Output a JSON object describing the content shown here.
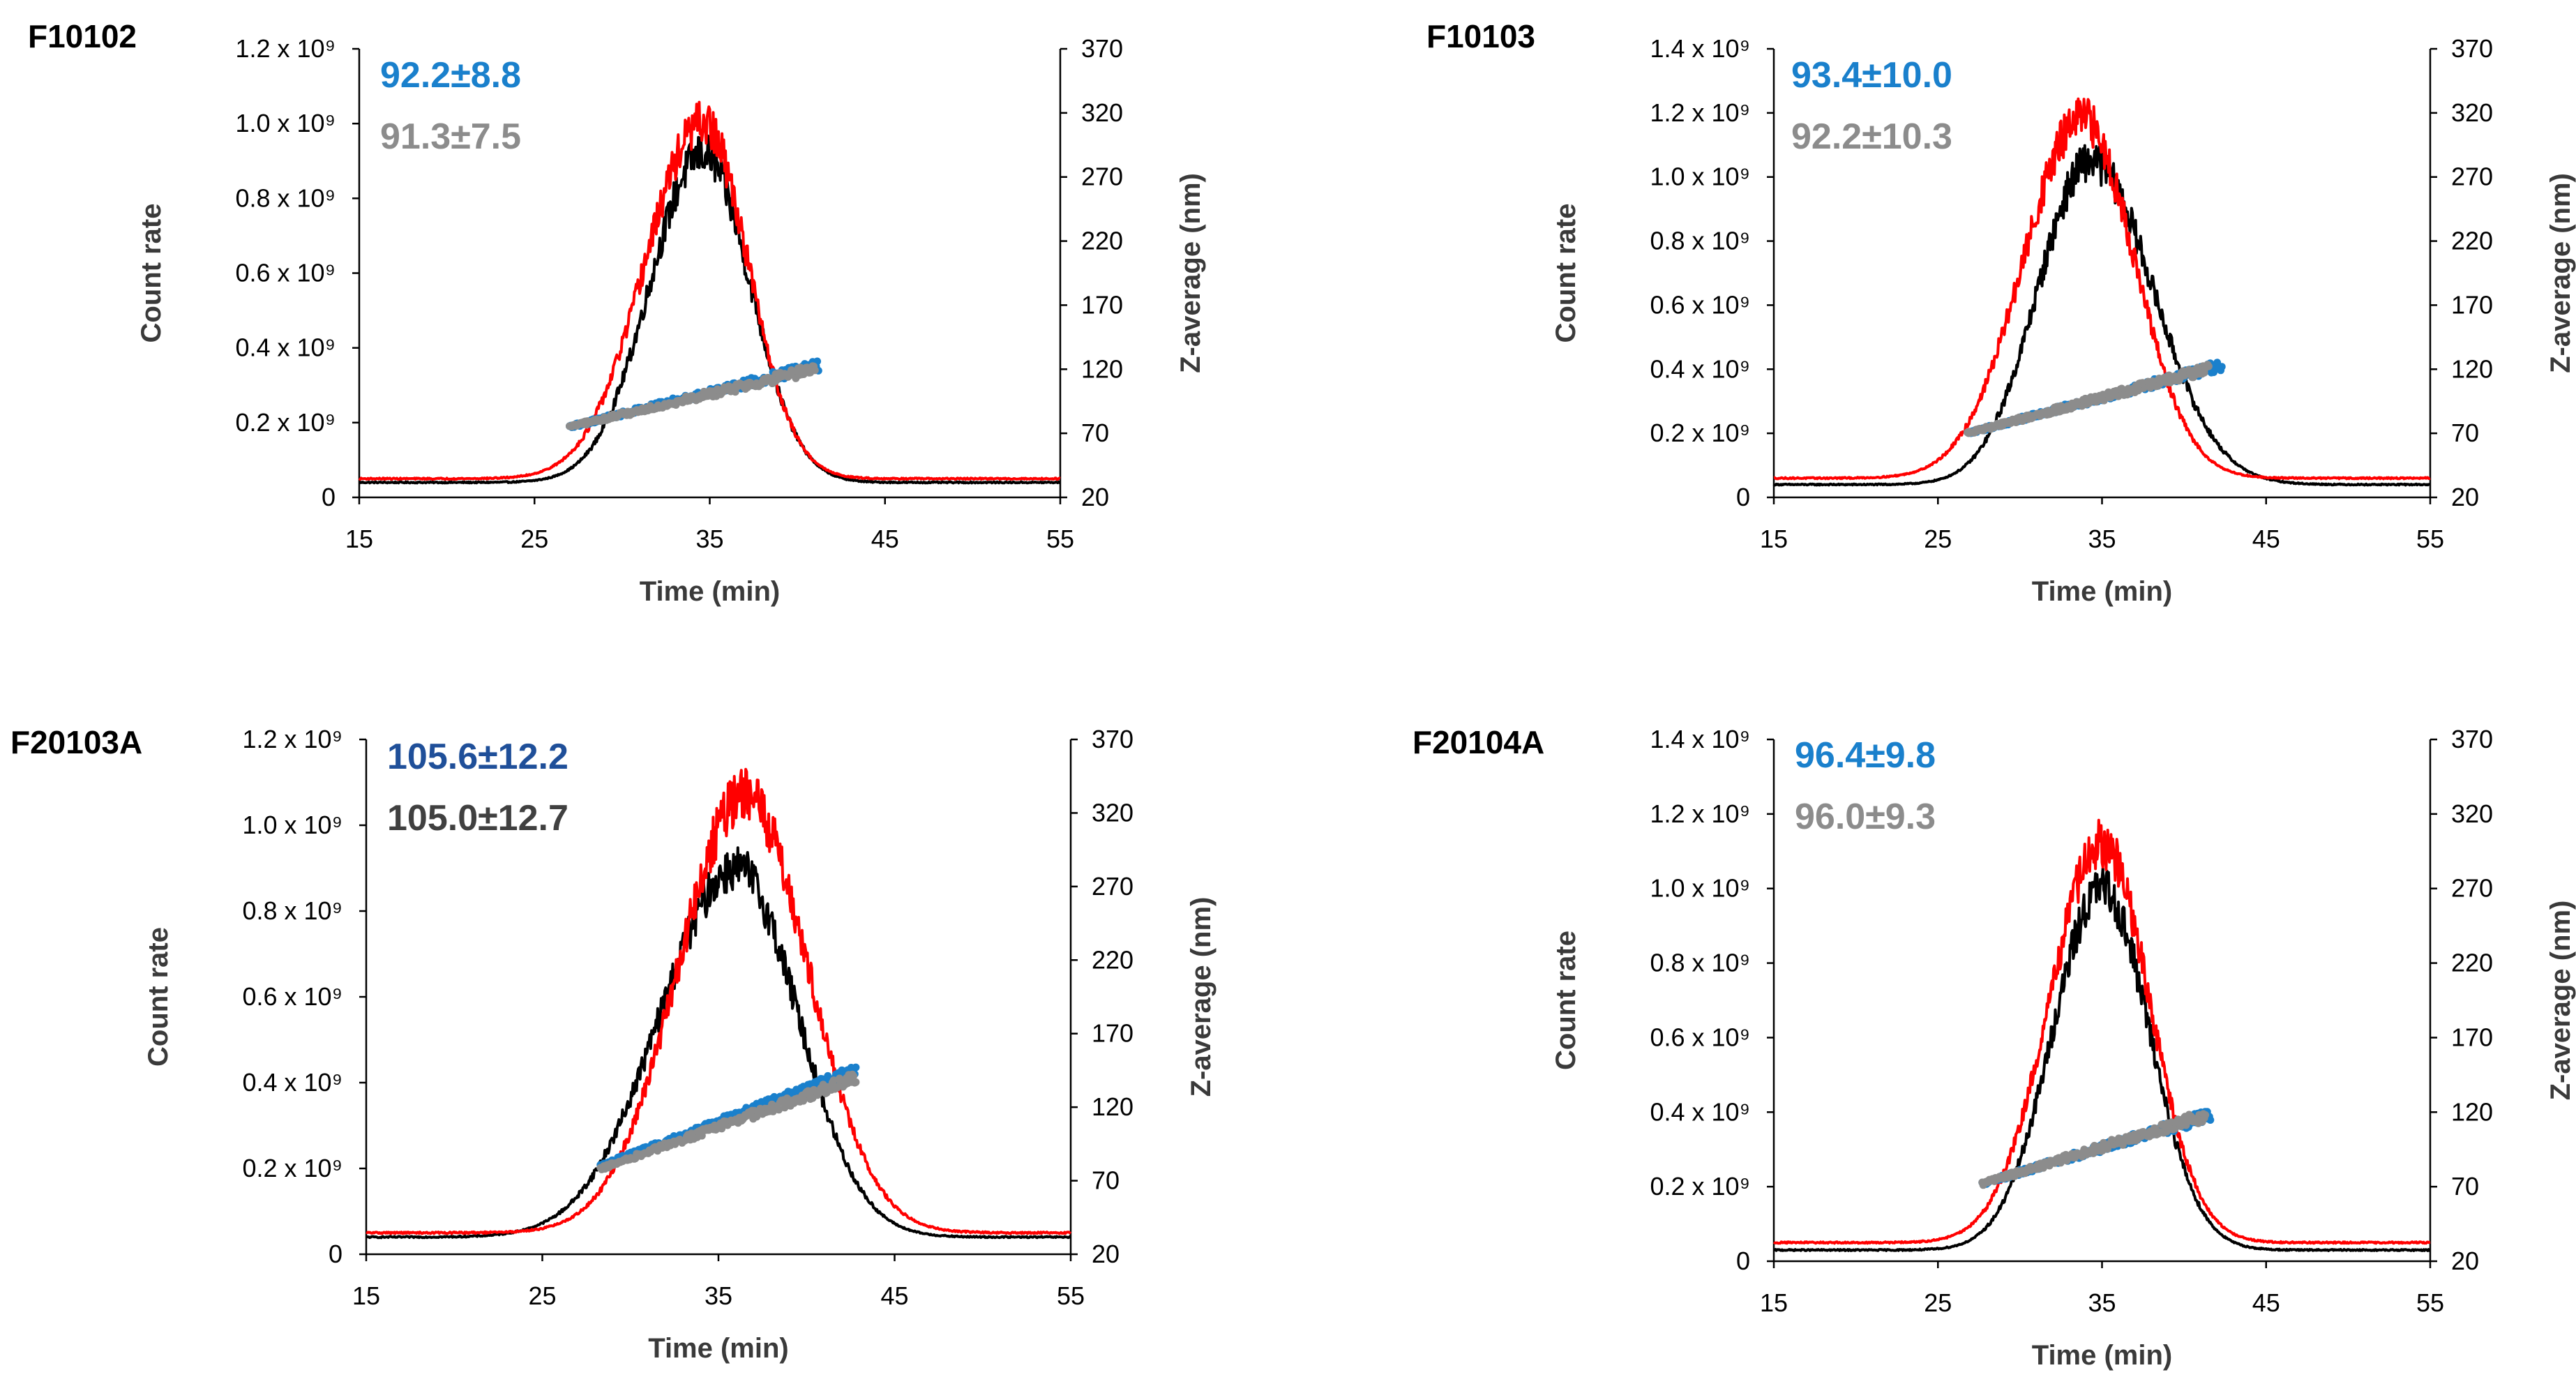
{
  "colors": {
    "black_trace": "#000000",
    "red_trace": "#ff0000",
    "blue_points": "#1a80cc",
    "gray_points": "#8c8c8c"
  },
  "chart_data": [
    {
      "type": "line",
      "panel_label": "F10102",
      "xlabel": "Time (min)",
      "ylabel": "Count rate",
      "y2label": "Z-average (nm)",
      "xlim": [
        15,
        55
      ],
      "x_ticks": [
        "15",
        "25",
        "35",
        "45",
        "55"
      ],
      "ylim": [
        0,
        1200000000.0
      ],
      "y_ticks": [
        "0",
        "0.2 x 10⁹",
        "0.4 x 10⁹",
        "0.6 x 10⁹",
        "0.8 x 10⁹",
        "1.0 x 10⁹",
        "1.2 x 10⁹"
      ],
      "y2lim": [
        20,
        370
      ],
      "y2_ticks": [
        "20",
        "70",
        "120",
        "170",
        "220",
        "270",
        "320",
        "370"
      ],
      "annotations": [
        {
          "text": "92.2±8.8",
          "color": "#1a80cc"
        },
        {
          "text": "91.3±7.5",
          "color": "#8c8c8c"
        }
      ],
      "series": [
        {
          "color": "#000000",
          "axis": "left",
          "baseline": 40000000.0,
          "peak_x": 34.6,
          "peak_y": 920000000.0,
          "sigma_left": 3.0,
          "sigma_right": 2.7,
          "onset_x": 25.0
        },
        {
          "color": "#ff0000",
          "axis": "left",
          "baseline": 50000000.0,
          "peak_x": 34.6,
          "peak_y": 1000000000.0,
          "sigma_left": 3.3,
          "sigma_right": 2.6,
          "onset_x": 24.5
        },
        {
          "color": "#1a80cc",
          "axis": "right",
          "x_start": 27.0,
          "x_end": 41.2,
          "y_start": 75,
          "y_end": 123
        },
        {
          "color": "#8c8c8c",
          "axis": "right",
          "x_start": 27.0,
          "x_end": 41.0,
          "y_start": 75,
          "y_end": 120
        }
      ]
    },
    {
      "type": "line",
      "panel_label": "F10103",
      "xlabel": "Time (min)",
      "ylabel": "Count rate",
      "y2label": "Z-average (nm)",
      "xlim": [
        15,
        55
      ],
      "x_ticks": [
        "15",
        "25",
        "35",
        "45",
        "55"
      ],
      "ylim": [
        0,
        1400000000.0
      ],
      "y_ticks": [
        "0",
        "0.2 x 10⁹",
        "0.4 x 10⁹",
        "0.6 x 10⁹",
        "0.8 x 10⁹",
        "1.0 x 10⁹",
        "1.2 x 10⁹",
        "1.4 x 10⁹"
      ],
      "y2lim": [
        20,
        370
      ],
      "y2_ticks": [
        "20",
        "70",
        "120",
        "170",
        "220",
        "270",
        "320",
        "370"
      ],
      "annotations": [
        {
          "text": "93.4±10.0",
          "color": "#1a80cc"
        },
        {
          "text": "92.2±10.3",
          "color": "#8c8c8c"
        }
      ],
      "series": [
        {
          "color": "#000000",
          "axis": "left",
          "baseline": 40000000.0,
          "peak_x": 34.3,
          "peak_y": 1050000000.0,
          "sigma_left": 3.2,
          "sigma_right": 3.8,
          "onset_x": 26.0
        },
        {
          "color": "#ff0000",
          "axis": "left",
          "baseline": 60000000.0,
          "peak_x": 33.8,
          "peak_y": 1180000000.0,
          "sigma_left": 3.6,
          "sigma_right": 3.2,
          "onset_x": 21.0
        },
        {
          "color": "#1a80cc",
          "axis": "right",
          "x_start": 26.8,
          "x_end": 42.3,
          "y_start": 70,
          "y_end": 123
        },
        {
          "color": "#8c8c8c",
          "axis": "right",
          "x_start": 26.8,
          "x_end": 41.5,
          "y_start": 70,
          "y_end": 120
        }
      ]
    },
    {
      "type": "line",
      "panel_label": "F20103A",
      "xlabel": "Time (min)",
      "ylabel": "Count rate",
      "y2label": "Z-average (nm)",
      "xlim": [
        15,
        55
      ],
      "x_ticks": [
        "15",
        "25",
        "35",
        "45",
        "55"
      ],
      "ylim": [
        0,
        1200000000.0
      ],
      "y_ticks": [
        "0",
        "0.2 x 10⁹",
        "0.4 x 10⁹",
        "0.6 x 10⁹",
        "0.8 x 10⁹",
        "1.0 x 10⁹",
        "1.2 x 10⁹"
      ],
      "y2lim": [
        20,
        370
      ],
      "y2_ticks": [
        "20",
        "70",
        "120",
        "170",
        "220",
        "270",
        "320",
        "370"
      ],
      "annotations": [
        {
          "text": "105.6±12.2",
          "color": "#1f4f99"
        },
        {
          "text": "105.0±12.7",
          "color": "#404040"
        }
      ],
      "series": [
        {
          "color": "#000000",
          "axis": "left",
          "baseline": 40000000.0,
          "peak_x": 36.0,
          "peak_y": 900000000.0,
          "sigma_left": 4.3,
          "sigma_right": 3.5,
          "onset_x": 24.0
        },
        {
          "color": "#ff0000",
          "axis": "left",
          "baseline": 50000000.0,
          "peak_x": 36.5,
          "peak_y": 1070000000.0,
          "sigma_left": 3.8,
          "sigma_right": 3.6,
          "onset_x": 24.5
        },
        {
          "color": "#1a80cc",
          "axis": "right",
          "x_start": 28.3,
          "x_end": 42.8,
          "y_start": 80,
          "y_end": 145
        },
        {
          "color": "#8c8c8c",
          "axis": "right",
          "x_start": 28.3,
          "x_end": 42.8,
          "y_start": 78,
          "y_end": 140
        }
      ]
    },
    {
      "type": "line",
      "panel_label": "F20104A",
      "xlabel": "Time (min)",
      "ylabel": "Count rate",
      "y2label": "Z-average (nm)",
      "xlim": [
        15,
        55
      ],
      "x_ticks": [
        "15",
        "25",
        "35",
        "45",
        "55"
      ],
      "ylim": [
        0,
        1400000000.0
      ],
      "y_ticks": [
        "0",
        "0.2 x 10⁹",
        "0.4 x 10⁹",
        "0.6 x 10⁹",
        "0.8 x 10⁹",
        "1.0 x 10⁹",
        "1.2 x 10⁹",
        "1.4 x 10⁹"
      ],
      "y2lim": [
        20,
        370
      ],
      "y2_ticks": [
        "20",
        "70",
        "120",
        "170",
        "220",
        "270",
        "320",
        "370"
      ],
      "annotations": [
        {
          "text": "96.4±9.8",
          "color": "#1a80cc"
        },
        {
          "text": "96.0±9.3",
          "color": "#8c8c8c"
        }
      ],
      "series": [
        {
          "color": "#000000",
          "axis": "left",
          "baseline": 30000000.0,
          "peak_x": 35.0,
          "peak_y": 1000000000.0,
          "sigma_left": 3.0,
          "sigma_right": 2.9,
          "onset_x": 26.0
        },
        {
          "color": "#ff0000",
          "axis": "left",
          "baseline": 50000000.0,
          "peak_x": 35.0,
          "peak_y": 1120000000.0,
          "sigma_left": 3.2,
          "sigma_right": 2.9,
          "onset_x": 25.0
        },
        {
          "color": "#1a80cc",
          "axis": "right",
          "x_start": 27.7,
          "x_end": 41.6,
          "y_start": 72,
          "y_end": 118
        },
        {
          "color": "#8c8c8c",
          "axis": "right",
          "x_start": 27.7,
          "x_end": 41.3,
          "y_start": 72,
          "y_end": 118
        }
      ]
    }
  ]
}
